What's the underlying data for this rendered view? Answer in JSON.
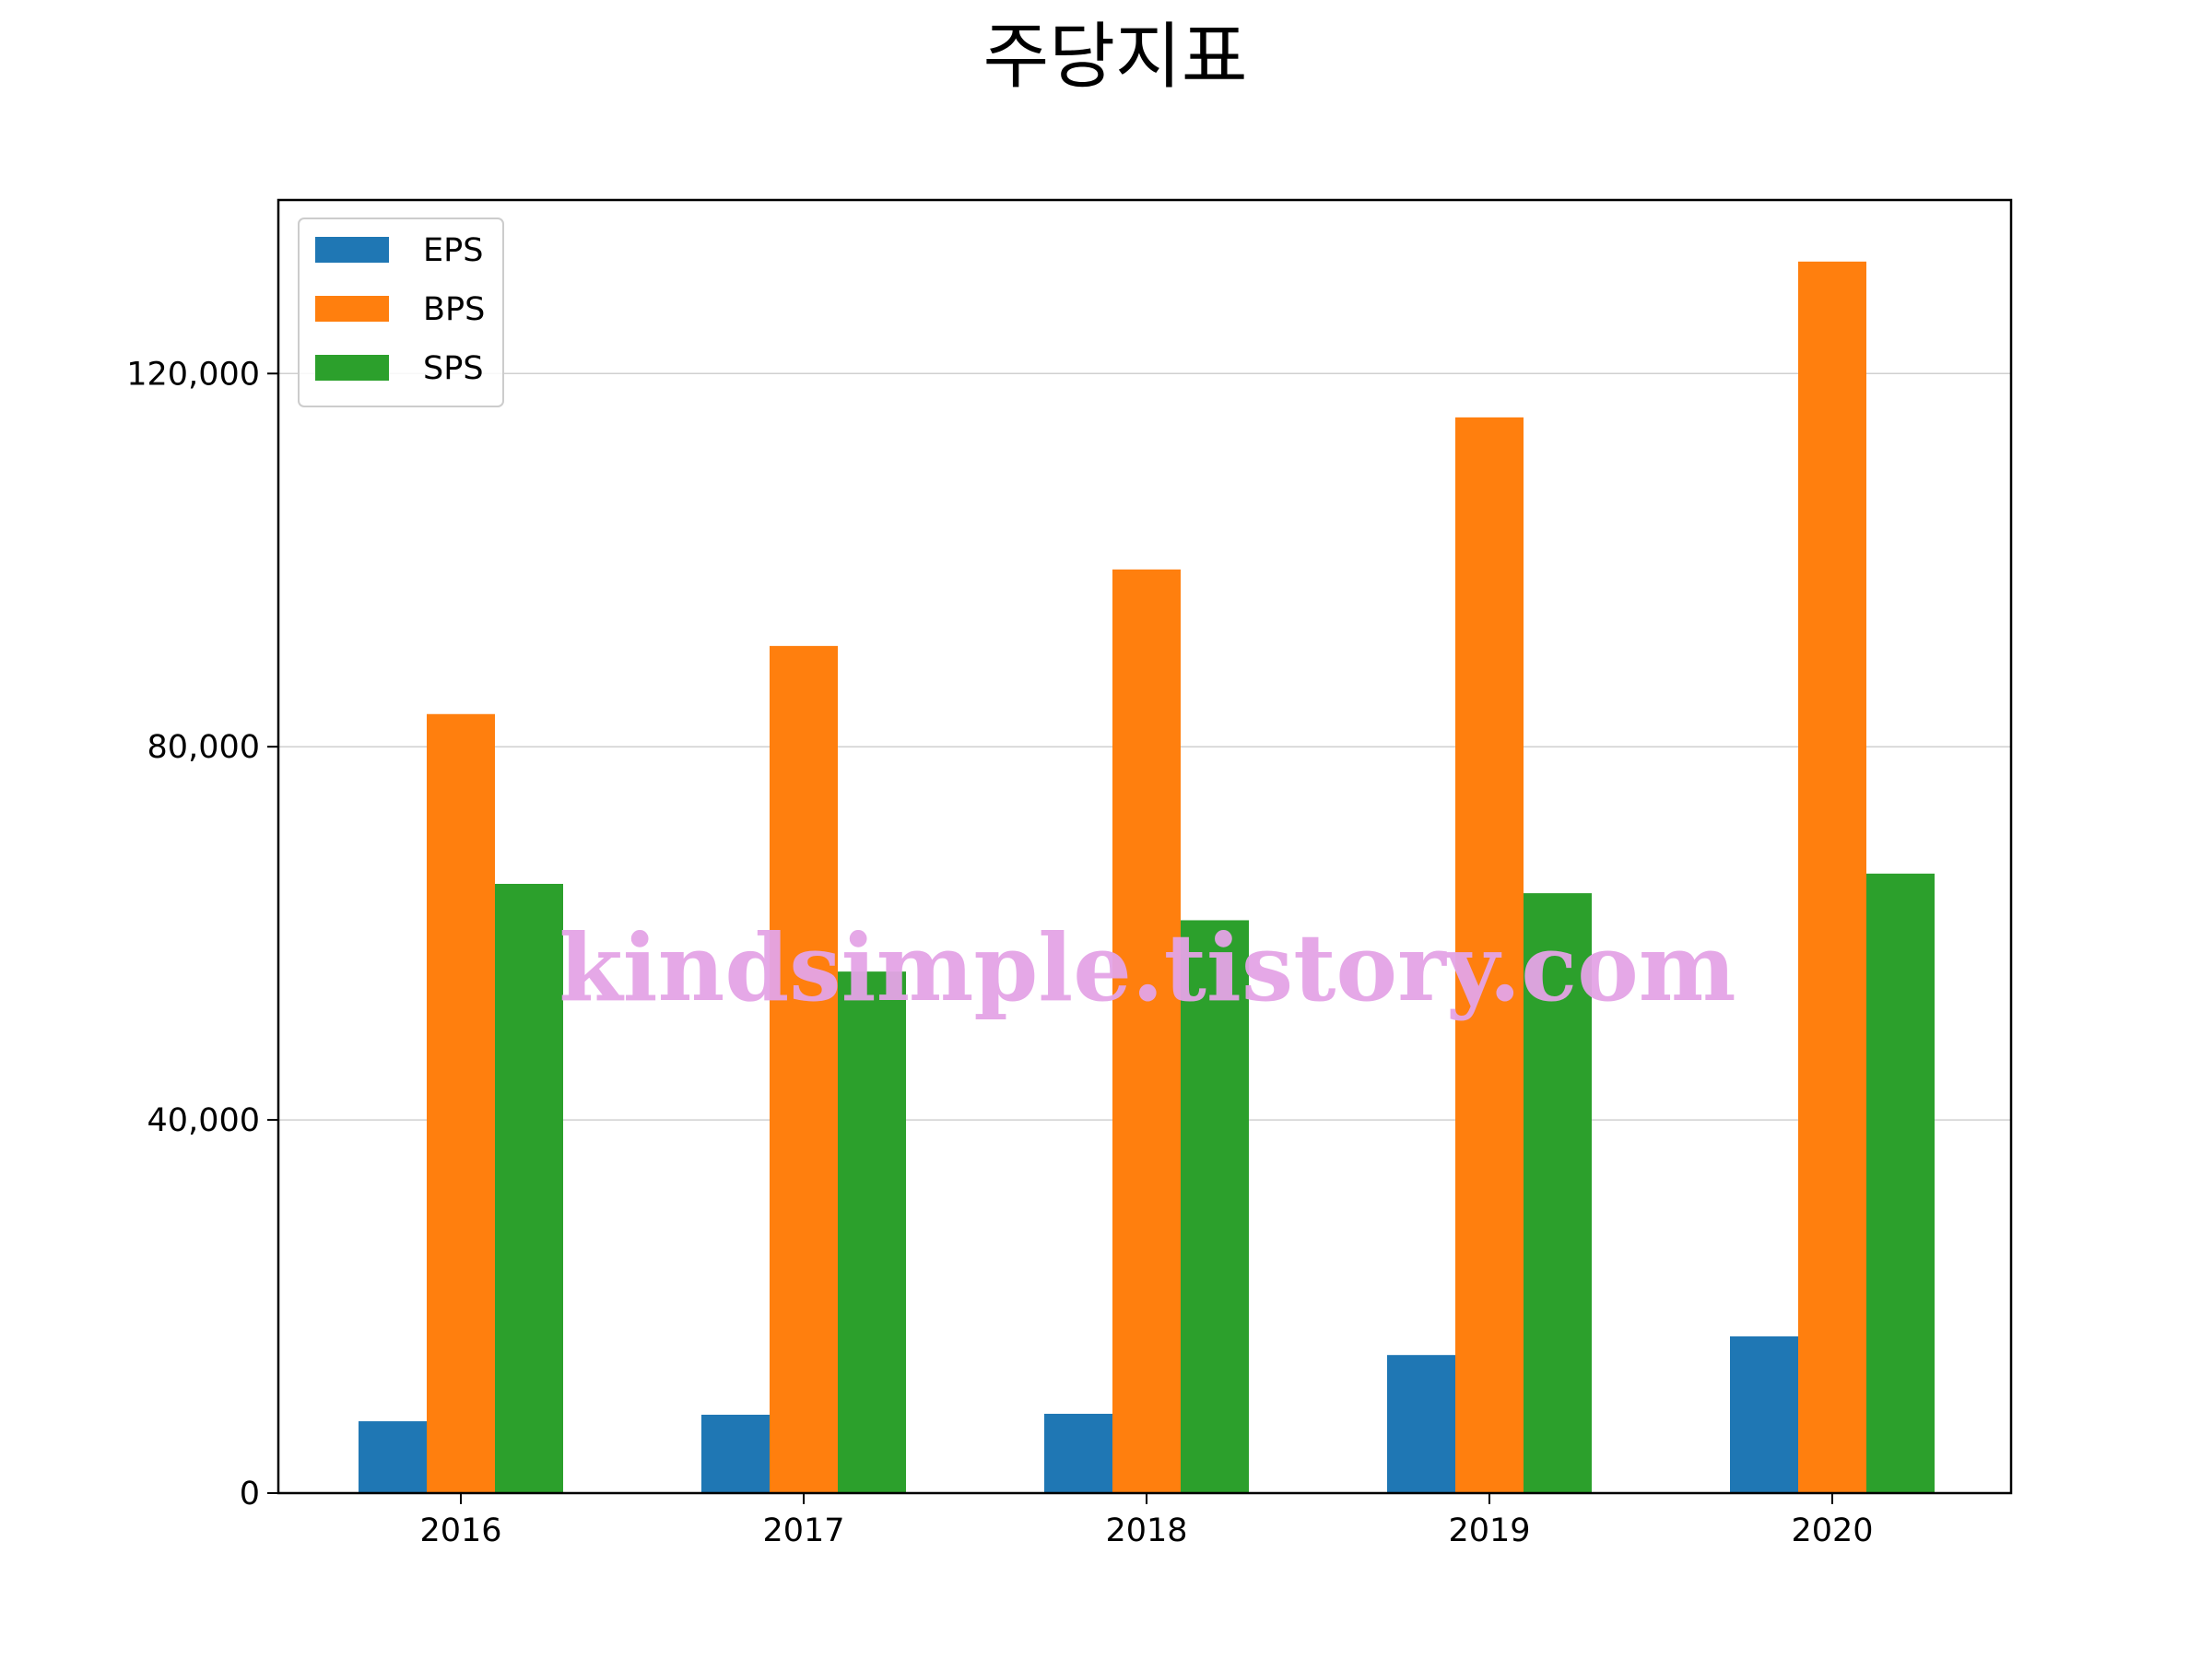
{
  "chart_data": {
    "type": "bar",
    "title": "주당지표",
    "xlabel": "",
    "ylabel": "",
    "categories": [
      "2016",
      "2017",
      "2018",
      "2019",
      "2020"
    ],
    "series": [
      {
        "name": "EPS",
        "color": "#1f77b4",
        "values": [
          7700,
          8400,
          8500,
          14800,
          16800
        ]
      },
      {
        "name": "BPS",
        "color": "#ff7f0e",
        "values": [
          83500,
          90800,
          99000,
          115300,
          132000
        ]
      },
      {
        "name": "SPS",
        "color": "#2ca02c",
        "values": [
          65300,
          55900,
          61400,
          64300,
          66400
        ]
      }
    ],
    "ylim": [
      0,
      138600
    ],
    "yticks": [
      {
        "value": 0,
        "label": "0"
      },
      {
        "value": 40000,
        "label": "40,000"
      },
      {
        "value": 80000,
        "label": "80,000"
      },
      {
        "value": 120000,
        "label": "120,000"
      }
    ],
    "grid": "y",
    "legend_position": "top-left",
    "watermark": "kindsimple.tistory.com"
  }
}
